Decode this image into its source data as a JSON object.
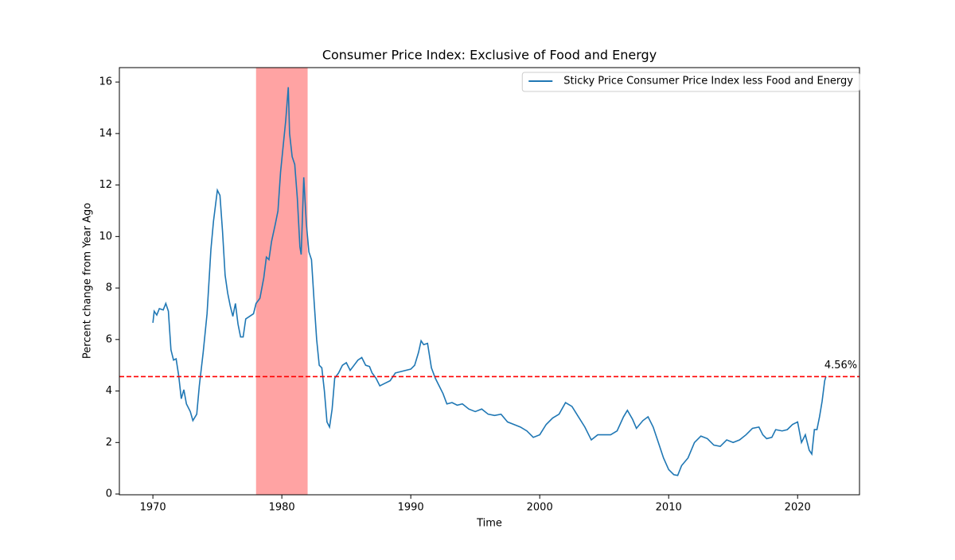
{
  "chart_data": {
    "type": "line",
    "title": "Consumer Price Index: Exclusive of Food and Energy",
    "xlabel": "Time",
    "ylabel": "Percent change from Year Ago",
    "x": [
      1970.0,
      1970.1,
      1970.3,
      1970.5,
      1970.8,
      1971.0,
      1971.2,
      1971.4,
      1971.6,
      1971.8,
      1972.0,
      1972.2,
      1972.4,
      1972.6,
      1972.9,
      1973.1,
      1973.4,
      1973.6,
      1973.9,
      1974.2,
      1974.5,
      1974.7,
      1974.9,
      1975.0,
      1975.2,
      1975.4,
      1975.6,
      1975.8,
      1976.0,
      1976.2,
      1976.4,
      1976.6,
      1976.8,
      1977.0,
      1977.2,
      1977.5,
      1977.8,
      1978.0,
      1978.3,
      1978.6,
      1978.8,
      1979.0,
      1979.2,
      1979.5,
      1979.7,
      1979.9,
      1980.1,
      1980.3,
      1980.5,
      1980.6,
      1980.8,
      1981.0,
      1981.2,
      1981.4,
      1981.5,
      1981.7,
      1981.9,
      1982.1,
      1982.3,
      1982.5,
      1982.7,
      1982.9,
      1983.1,
      1983.3,
      1983.5,
      1983.7,
      1983.9,
      1984.1,
      1984.4,
      1984.7,
      1985.0,
      1985.3,
      1985.6,
      1985.9,
      1986.2,
      1986.5,
      1986.8,
      1987.0,
      1987.3,
      1987.6,
      1988.0,
      1988.4,
      1988.8,
      1989.2,
      1989.6,
      1990.0,
      1990.3,
      1990.6,
      1990.8,
      1991.0,
      1991.3,
      1991.6,
      1991.9,
      1992.2,
      1992.5,
      1992.8,
      1993.2,
      1993.6,
      1994.0,
      1994.5,
      1995.0,
      1995.5,
      1996.0,
      1996.5,
      1997.0,
      1997.5,
      1998.0,
      1998.5,
      1999.0,
      1999.5,
      2000.0,
      2000.5,
      2001.0,
      2001.5,
      2002.0,
      2002.5,
      2003.0,
      2003.5,
      2004.0,
      2004.5,
      2005.0,
      2005.5,
      2006.0,
      2006.5,
      2006.8,
      2007.2,
      2007.5,
      2008.0,
      2008.4,
      2008.8,
      2009.2,
      2009.6,
      2010.0,
      2010.4,
      2010.7,
      2011.0,
      2011.5,
      2012.0,
      2012.5,
      2013.0,
      2013.5,
      2014.0,
      2014.5,
      2015.0,
      2015.5,
      2016.0,
      2016.5,
      2017.0,
      2017.3,
      2017.6,
      2018.0,
      2018.3,
      2018.8,
      2019.2,
      2019.6,
      2020.0,
      2020.3,
      2020.6,
      2020.9,
      2021.1,
      2021.3,
      2021.5,
      2021.7,
      2021.9,
      2022.1,
      2022.2
    ],
    "series": [
      {
        "name": "Sticky Price Consumer Price Index less Food and Energy",
        "color": "#1f77b4",
        "values": [
          6.65,
          7.1,
          6.95,
          7.2,
          7.15,
          7.4,
          7.1,
          5.6,
          5.2,
          5.25,
          4.6,
          3.7,
          4.05,
          3.5,
          3.2,
          2.85,
          3.1,
          4.2,
          5.5,
          7.0,
          9.5,
          10.6,
          11.4,
          11.8,
          11.6,
          10.2,
          8.5,
          7.8,
          7.3,
          6.9,
          7.4,
          6.6,
          6.1,
          6.1,
          6.8,
          6.9,
          7.0,
          7.4,
          7.6,
          8.4,
          9.2,
          9.1,
          9.8,
          10.5,
          11.0,
          12.5,
          13.5,
          14.5,
          15.8,
          14.0,
          13.1,
          12.8,
          11.5,
          9.6,
          9.3,
          12.3,
          10.5,
          9.4,
          9.1,
          7.5,
          6.0,
          5.0,
          4.9,
          4.0,
          2.8,
          2.6,
          3.3,
          4.5,
          4.7,
          5.0,
          5.1,
          4.8,
          5.0,
          5.2,
          5.3,
          5.0,
          4.95,
          4.7,
          4.5,
          4.2,
          4.3,
          4.4,
          4.7,
          4.75,
          4.8,
          4.85,
          5.0,
          5.5,
          5.95,
          5.8,
          5.85,
          4.9,
          4.5,
          4.2,
          3.9,
          3.5,
          3.55,
          3.45,
          3.5,
          3.3,
          3.2,
          3.3,
          3.1,
          3.05,
          3.1,
          2.8,
          2.7,
          2.6,
          2.45,
          2.2,
          2.3,
          2.7,
          2.95,
          3.1,
          3.55,
          3.4,
          3.0,
          2.6,
          2.1,
          2.3,
          2.3,
          2.3,
          2.45,
          3.0,
          3.25,
          2.9,
          2.55,
          2.85,
          3.0,
          2.6,
          2.0,
          1.4,
          0.95,
          0.75,
          0.72,
          1.1,
          1.4,
          2.0,
          2.25,
          2.15,
          1.9,
          1.85,
          2.1,
          2.0,
          2.1,
          2.3,
          2.55,
          2.6,
          2.3,
          2.15,
          2.2,
          2.5,
          2.45,
          2.5,
          2.7,
          2.8,
          2.0,
          2.3,
          1.7,
          1.55,
          2.5,
          2.5,
          3.0,
          3.6,
          4.4,
          4.56
        ]
      }
    ],
    "xlim": [
      1967.4,
      2024.8
    ],
    "ylim": [
      -0.03,
      16.56
    ],
    "xticks": [
      1970,
      1980,
      1990,
      2000,
      2010,
      2020
    ],
    "yticks": [
      0,
      2,
      4,
      6,
      8,
      10,
      12,
      14,
      16
    ],
    "shaded_span": {
      "x": [
        1978,
        1982
      ],
      "color": "#ff9999"
    },
    "hline": {
      "value": 4.56,
      "label": "4.56%",
      "color": "#ff0000"
    },
    "legend": "upper right"
  }
}
